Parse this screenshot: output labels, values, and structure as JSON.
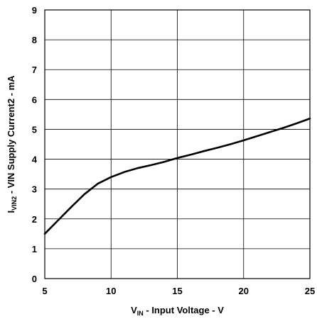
{
  "chart_data": {
    "type": "line",
    "xlabel": {
      "main": "V",
      "sub": "IN",
      "rest": " - Input Voltage - V"
    },
    "ylabel": {
      "main": "I",
      "sub": "VIN2",
      "rest": " - VIN Supply Current2 - mA"
    },
    "xlim": [
      5,
      25
    ],
    "ylim": [
      0,
      9
    ],
    "x_ticks": [
      "5",
      "10",
      "15",
      "20",
      "25"
    ],
    "y_ticks": [
      "0",
      "1",
      "2",
      "3",
      "4",
      "5",
      "6",
      "7",
      "8",
      "9"
    ],
    "grid": true,
    "series": [
      {
        "x": [
          5,
          6,
          7,
          8,
          9,
          10,
          11,
          12,
          13,
          14,
          15,
          16,
          17,
          18,
          19,
          20,
          21,
          22,
          23,
          24,
          25
        ],
        "values": [
          1.5,
          1.95,
          2.4,
          2.83,
          3.18,
          3.4,
          3.57,
          3.7,
          3.8,
          3.91,
          4.04,
          4.15,
          4.27,
          4.38,
          4.5,
          4.63,
          4.77,
          4.91,
          5.05,
          5.2,
          5.36
        ]
      }
    ]
  }
}
